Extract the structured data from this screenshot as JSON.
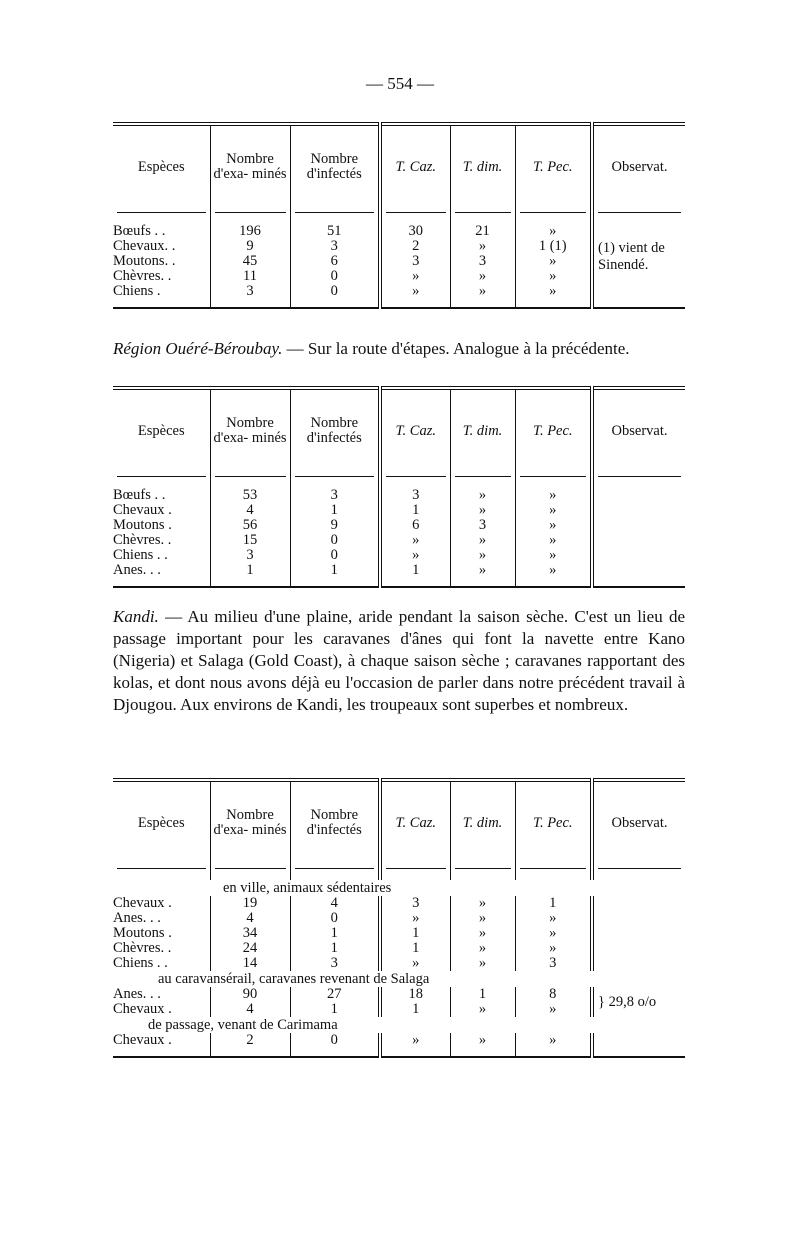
{
  "page_number": "— 554 —",
  "headers": {
    "especes": "Espèces",
    "examines": "Nombre d'exa- minés",
    "infectes": "Nombre d'infectés",
    "tcaz": "T. Caz.",
    "tdim": "T. dim.",
    "tpec": "T. Pec.",
    "observat": "Observat."
  },
  "table1": {
    "rows": [
      {
        "species": "Bœufs . .",
        "examines": "196",
        "infectes": "51",
        "tcaz": "30",
        "tdim": "21",
        "tpec": "»"
      },
      {
        "species": "Chevaux. .",
        "examines": "9",
        "infectes": "3",
        "tcaz": "2",
        "tdim": "»",
        "tpec": "1 (1)"
      },
      {
        "species": "Moutons. .",
        "examines": "45",
        "infectes": "6",
        "tcaz": "3",
        "tdim": "3",
        "tpec": "»"
      },
      {
        "species": "Chèvres. .",
        "examines": "11",
        "infectes": "0",
        "tcaz": "»",
        "tdim": "»",
        "tpec": "»"
      },
      {
        "species": "Chiens .",
        "examines": "3",
        "infectes": "0",
        "tcaz": "»",
        "tdim": "»",
        "tpec": "»"
      }
    ],
    "observation": "(1) vient de Sinendé."
  },
  "paragraph1": {
    "region": "Région Ouéré-Béroubay.",
    "text": " — Sur la route d'étapes. Analogue à la précédente."
  },
  "table2": {
    "rows": [
      {
        "species": "Bœufs . .",
        "examines": "53",
        "infectes": "3",
        "tcaz": "3",
        "tdim": "»",
        "tpec": "»"
      },
      {
        "species": "Chevaux .",
        "examines": "4",
        "infectes": "1",
        "tcaz": "1",
        "tdim": "»",
        "tpec": "»"
      },
      {
        "species": "Moutons .",
        "examines": "56",
        "infectes": "9",
        "tcaz": "6",
        "tdim": "3",
        "tpec": "»"
      },
      {
        "species": "Chèvres. .",
        "examines": "15",
        "infectes": "0",
        "tcaz": "»",
        "tdim": "»",
        "tpec": "»"
      },
      {
        "species": "Chiens . .",
        "examines": "3",
        "infectes": "0",
        "tcaz": "»",
        "tdim": "»",
        "tpec": "»"
      },
      {
        "species": "Anes. . .",
        "examines": "1",
        "infectes": "1",
        "tcaz": "1",
        "tdim": "»",
        "tpec": "»"
      }
    ]
  },
  "paragraph2": {
    "place": "Kandi.",
    "text": " — Au milieu d'une plaine, aride pendant la saison sèche. C'est un lieu de passage important pour les caravanes d'ânes qui font la navette entre Kano (Nigeria) et Salaga (Gold Coast), à chaque saison sèche ; caravanes rapportant des kolas, et dont nous avons déjà eu l'occasion de parler dans notre précédent travail à Djougou. Aux environs de Kandi, les troupeaux sont superbes et nombreux."
  },
  "table3": {
    "group1_label": "en ville, animaux sédentaires",
    "group1": [
      {
        "species": "Chevaux .",
        "examines": "19",
        "infectes": "4",
        "tcaz": "3",
        "tdim": "»",
        "tpec": "1"
      },
      {
        "species": "Anes. . .",
        "examines": "4",
        "infectes": "0",
        "tcaz": "»",
        "tdim": "»",
        "tpec": "»"
      },
      {
        "species": "Moutons .",
        "examines": "34",
        "infectes": "1",
        "tcaz": "1",
        "tdim": "»",
        "tpec": "»"
      },
      {
        "species": "Chèvres. .",
        "examines": "24",
        "infectes": "1",
        "tcaz": "1",
        "tdim": "»",
        "tpec": "»"
      },
      {
        "species": "Chiens . .",
        "examines": "14",
        "infectes": "3",
        "tcaz": "»",
        "tdim": "»",
        "tpec": "3"
      }
    ],
    "group2_label": "au caravansérail, caravanes revenant de Salaga",
    "group2": [
      {
        "species": "Anes. . .",
        "examines": "90",
        "infectes": "27",
        "tcaz": "18",
        "tdim": "1",
        "tpec": "8"
      },
      {
        "species": "Chevaux .",
        "examines": "4",
        "infectes": "1",
        "tcaz": "1",
        "tdim": "»",
        "tpec": "»"
      }
    ],
    "group2_observation": "} 29,8 o/o",
    "group3_label": "de passage, venant de Carimama",
    "group3": [
      {
        "species": "Chevaux .",
        "examines": "2",
        "infectes": "0",
        "tcaz": "»",
        "tdim": "»",
        "tpec": "»"
      }
    ]
  }
}
